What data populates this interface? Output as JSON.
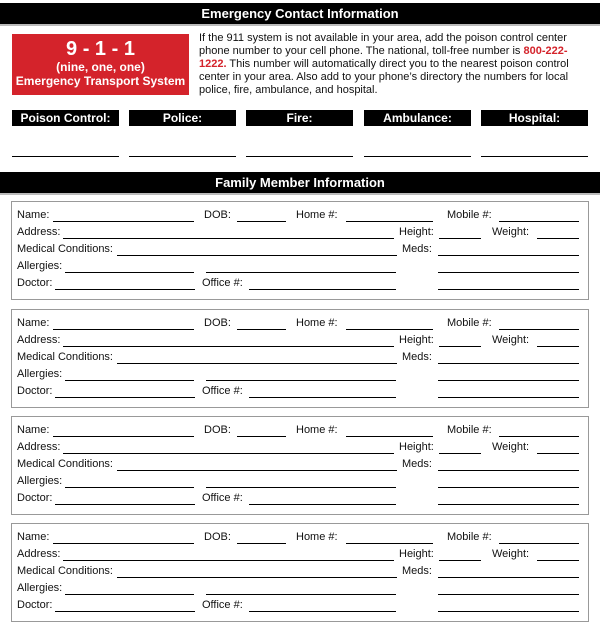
{
  "emergency": {
    "title": "Emergency Contact Information",
    "red_box": {
      "number": "9 - 1 - 1",
      "spelled": "(nine, one, one)",
      "caption": "Emergency Transport System"
    },
    "info_before": "If the 911 system is not available in your area, add the poison control center phone number to your cell phone. The national, toll-free number is ",
    "poison_phone": "800-222-1222.",
    "info_after": " This number will automatically direct you to the nearest poison control center in your area. Also add to your phone’s directory the numbers for local police, fire, ambulance, and hospital.",
    "categories": [
      "Poison Control:",
      "Police:",
      "Fire:",
      "Ambulance:",
      "Hospital:"
    ]
  },
  "family": {
    "title": "Family Member Information",
    "field_labels": {
      "name": "Name:",
      "dob": "DOB:",
      "home": "Home #:",
      "mobile": "Mobile #:",
      "address": "Address:",
      "height": "Height:",
      "weight": "Weight:",
      "medical": "Medical Conditions:",
      "meds": "Meds:",
      "allergies": "Allergies:",
      "doctor": "Doctor:",
      "office": "Office #:"
    },
    "card_count": 4
  },
  "colors": {
    "accent_red": "#d4232b",
    "bar": "#000000"
  }
}
